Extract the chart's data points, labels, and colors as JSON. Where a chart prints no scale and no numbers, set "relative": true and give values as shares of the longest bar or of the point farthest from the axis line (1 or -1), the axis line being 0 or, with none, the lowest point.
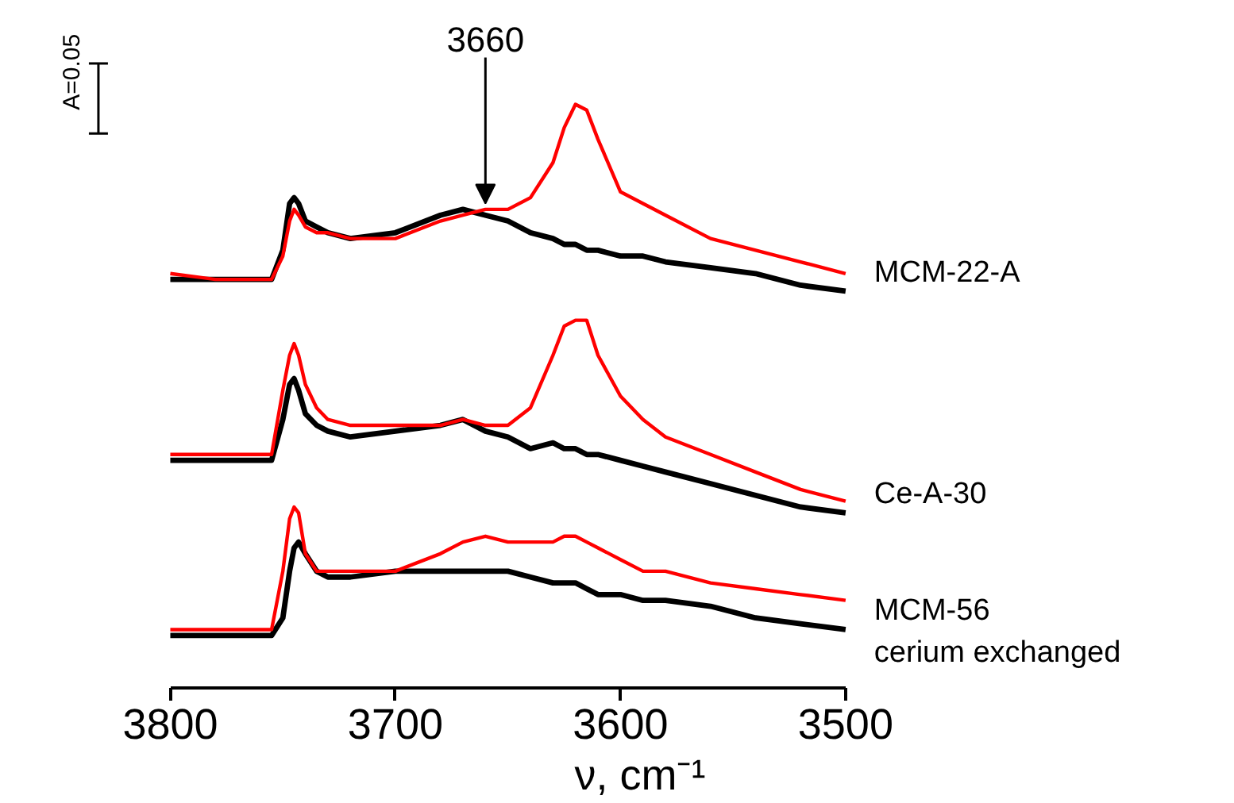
{
  "chart_data": {
    "type": "line",
    "relative": true,
    "tick_labels": "x",
    "xlabel": "ν, cm⁻¹",
    "xlim": [
      3800,
      3500
    ],
    "xticks": [
      3800,
      3700,
      3600,
      3500
    ],
    "x": [
      3800,
      3780,
      3760,
      3755,
      3750,
      3747,
      3745,
      3743,
      3740,
      3735,
      3730,
      3720,
      3700,
      3680,
      3670,
      3660,
      3650,
      3640,
      3630,
      3625,
      3620,
      3615,
      3610,
      3600,
      3590,
      3580,
      3560,
      3540,
      3520,
      3500
    ],
    "series": [
      {
        "name": "MCM-22-A",
        "color": "#000000",
        "values": [
          0.7,
          0.7,
          0.7,
          0.7,
          0.75,
          0.83,
          0.84,
          0.83,
          0.8,
          0.79,
          0.78,
          0.77,
          0.78,
          0.81,
          0.82,
          0.81,
          0.8,
          0.78,
          0.77,
          0.76,
          0.76,
          0.75,
          0.75,
          0.74,
          0.74,
          0.73,
          0.72,
          0.71,
          0.69,
          0.68
        ]
      },
      {
        "color": "#ff0000",
        "values": [
          0.71,
          0.7,
          0.7,
          0.7,
          0.74,
          0.8,
          0.82,
          0.81,
          0.79,
          0.78,
          0.78,
          0.77,
          0.77,
          0.8,
          0.81,
          0.82,
          0.82,
          0.84,
          0.9,
          0.96,
          1.0,
          0.99,
          0.94,
          0.85,
          0.83,
          0.81,
          0.77,
          0.75,
          0.73,
          0.71
        ]
      },
      {
        "name": "Ce-A-30",
        "color": "#000000",
        "values": [
          0.39,
          0.39,
          0.39,
          0.39,
          0.46,
          0.52,
          0.53,
          0.51,
          0.47,
          0.45,
          0.44,
          0.43,
          0.44,
          0.45,
          0.46,
          0.44,
          0.43,
          0.41,
          0.42,
          0.41,
          0.41,
          0.4,
          0.4,
          0.39,
          0.38,
          0.37,
          0.35,
          0.33,
          0.31,
          0.3
        ]
      },
      {
        "color": "#ff0000",
        "values": [
          0.4,
          0.4,
          0.4,
          0.4,
          0.51,
          0.57,
          0.59,
          0.57,
          0.52,
          0.48,
          0.46,
          0.45,
          0.45,
          0.45,
          0.46,
          0.45,
          0.45,
          0.48,
          0.57,
          0.62,
          0.63,
          0.63,
          0.57,
          0.5,
          0.46,
          0.43,
          0.4,
          0.37,
          0.34,
          0.32
        ]
      },
      {
        "name": "MCM-56\ncerium exchanged",
        "color": "#000000",
        "values": [
          0.09,
          0.09,
          0.09,
          0.09,
          0.12,
          0.2,
          0.24,
          0.25,
          0.23,
          0.2,
          0.19,
          0.19,
          0.2,
          0.2,
          0.2,
          0.2,
          0.2,
          0.19,
          0.18,
          0.18,
          0.18,
          0.17,
          0.16,
          0.16,
          0.15,
          0.15,
          0.14,
          0.12,
          0.11,
          0.1
        ]
      },
      {
        "color": "#ff0000",
        "values": [
          0.1,
          0.1,
          0.1,
          0.1,
          0.2,
          0.29,
          0.31,
          0.3,
          0.23,
          0.2,
          0.2,
          0.2,
          0.2,
          0.23,
          0.25,
          0.26,
          0.25,
          0.25,
          0.25,
          0.26,
          0.26,
          0.25,
          0.24,
          0.22,
          0.2,
          0.2,
          0.18,
          0.17,
          0.16,
          0.15
        ]
      }
    ],
    "annotations": [
      {
        "text": "3660",
        "x": 3660,
        "y": 0.83
      },
      "A=0.05"
    ]
  }
}
